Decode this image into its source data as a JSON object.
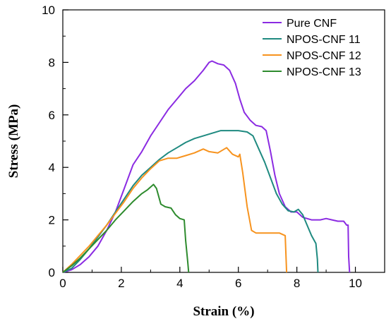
{
  "chart_data": {
    "type": "line",
    "title": "",
    "xlabel": "Strain (%)",
    "ylabel": "Stress (MPa)",
    "xlim": [
      0,
      11
    ],
    "ylim": [
      0,
      10
    ],
    "x_ticks": [
      0,
      2,
      4,
      6,
      8,
      10
    ],
    "y_ticks": [
      0,
      2,
      4,
      6,
      8,
      10
    ],
    "x_tick_labels": [
      "0",
      "2",
      "4",
      "6",
      "8",
      "10"
    ],
    "y_tick_labels": [
      "0",
      "2",
      "4",
      "6",
      "8",
      "10"
    ],
    "grid": false,
    "legend_position": "top-right",
    "series": [
      {
        "name": "Pure CNF",
        "color": "#8b2be2",
        "points": [
          [
            0,
            0
          ],
          [
            0.3,
            0.1
          ],
          [
            0.6,
            0.3
          ],
          [
            0.9,
            0.6
          ],
          [
            1.2,
            1.0
          ],
          [
            1.5,
            1.6
          ],
          [
            1.8,
            2.3
          ],
          [
            2.1,
            3.2
          ],
          [
            2.4,
            4.1
          ],
          [
            2.7,
            4.6
          ],
          [
            3.0,
            5.2
          ],
          [
            3.3,
            5.7
          ],
          [
            3.6,
            6.2
          ],
          [
            3.9,
            6.6
          ],
          [
            4.2,
            7.0
          ],
          [
            4.5,
            7.3
          ],
          [
            4.8,
            7.7
          ],
          [
            5.0,
            8.0
          ],
          [
            5.1,
            8.05
          ],
          [
            5.3,
            7.95
          ],
          [
            5.5,
            7.9
          ],
          [
            5.7,
            7.7
          ],
          [
            5.9,
            7.2
          ],
          [
            6.05,
            6.6
          ],
          [
            6.2,
            6.1
          ],
          [
            6.4,
            5.8
          ],
          [
            6.6,
            5.6
          ],
          [
            6.8,
            5.55
          ],
          [
            6.95,
            5.4
          ],
          [
            7.1,
            4.6
          ],
          [
            7.25,
            3.7
          ],
          [
            7.4,
            3.0
          ],
          [
            7.6,
            2.5
          ],
          [
            7.8,
            2.3
          ],
          [
            8.0,
            2.3
          ],
          [
            8.2,
            2.1
          ],
          [
            8.5,
            2.0
          ],
          [
            8.8,
            2.0
          ],
          [
            9.0,
            2.05
          ],
          [
            9.2,
            2.0
          ],
          [
            9.4,
            1.95
          ],
          [
            9.6,
            1.95
          ],
          [
            9.7,
            1.8
          ],
          [
            9.75,
            1.8
          ],
          [
            9.77,
            0.6
          ],
          [
            9.8,
            0
          ]
        ]
      },
      {
        "name": "NPOS-CNF 11",
        "color": "#1f8a80",
        "points": [
          [
            0,
            0
          ],
          [
            0.3,
            0.15
          ],
          [
            0.6,
            0.5
          ],
          [
            0.9,
            0.9
          ],
          [
            1.2,
            1.35
          ],
          [
            1.5,
            1.8
          ],
          [
            1.8,
            2.3
          ],
          [
            2.1,
            2.8
          ],
          [
            2.4,
            3.3
          ],
          [
            2.7,
            3.7
          ],
          [
            3.0,
            4.0
          ],
          [
            3.3,
            4.3
          ],
          [
            3.6,
            4.55
          ],
          [
            3.9,
            4.75
          ],
          [
            4.2,
            4.95
          ],
          [
            4.5,
            5.1
          ],
          [
            4.8,
            5.2
          ],
          [
            5.1,
            5.3
          ],
          [
            5.4,
            5.4
          ],
          [
            5.7,
            5.4
          ],
          [
            6.0,
            5.4
          ],
          [
            6.3,
            5.35
          ],
          [
            6.5,
            5.2
          ],
          [
            6.7,
            4.7
          ],
          [
            6.9,
            4.2
          ],
          [
            7.1,
            3.6
          ],
          [
            7.3,
            3.0
          ],
          [
            7.5,
            2.6
          ],
          [
            7.7,
            2.35
          ],
          [
            7.9,
            2.3
          ],
          [
            8.05,
            2.4
          ],
          [
            8.2,
            2.2
          ],
          [
            8.35,
            1.8
          ],
          [
            8.5,
            1.4
          ],
          [
            8.65,
            1.1
          ],
          [
            8.7,
            0.5
          ],
          [
            8.72,
            0
          ]
        ]
      },
      {
        "name": "NPOS-CNF 12",
        "color": "#f7931e",
        "points": [
          [
            0,
            0
          ],
          [
            0.3,
            0.3
          ],
          [
            0.6,
            0.65
          ],
          [
            0.9,
            1.0
          ],
          [
            1.2,
            1.4
          ],
          [
            1.5,
            1.8
          ],
          [
            1.8,
            2.25
          ],
          [
            2.1,
            2.7
          ],
          [
            2.4,
            3.2
          ],
          [
            2.7,
            3.6
          ],
          [
            3.0,
            3.95
          ],
          [
            3.3,
            4.25
          ],
          [
            3.6,
            4.35
          ],
          [
            3.9,
            4.35
          ],
          [
            4.2,
            4.45
          ],
          [
            4.5,
            4.55
          ],
          [
            4.8,
            4.7
          ],
          [
            5.0,
            4.6
          ],
          [
            5.3,
            4.55
          ],
          [
            5.6,
            4.75
          ],
          [
            5.8,
            4.5
          ],
          [
            6.0,
            4.4
          ],
          [
            6.05,
            4.5
          ],
          [
            6.15,
            3.8
          ],
          [
            6.3,
            2.5
          ],
          [
            6.45,
            1.6
          ],
          [
            6.6,
            1.5
          ],
          [
            7.0,
            1.5
          ],
          [
            7.4,
            1.5
          ],
          [
            7.6,
            1.4
          ],
          [
            7.65,
            0
          ]
        ]
      },
      {
        "name": "NPOS-CNF 13",
        "color": "#2e8b2e",
        "points": [
          [
            0,
            0
          ],
          [
            0.3,
            0.25
          ],
          [
            0.6,
            0.55
          ],
          [
            0.9,
            0.9
          ],
          [
            1.2,
            1.25
          ],
          [
            1.5,
            1.6
          ],
          [
            1.8,
            2.0
          ],
          [
            2.1,
            2.35
          ],
          [
            2.4,
            2.7
          ],
          [
            2.7,
            3.0
          ],
          [
            2.9,
            3.15
          ],
          [
            3.1,
            3.35
          ],
          [
            3.2,
            3.2
          ],
          [
            3.35,
            2.6
          ],
          [
            3.5,
            2.5
          ],
          [
            3.7,
            2.45
          ],
          [
            3.85,
            2.2
          ],
          [
            4.0,
            2.05
          ],
          [
            4.15,
            2.0
          ],
          [
            4.2,
            1.2
          ],
          [
            4.27,
            0.4
          ],
          [
            4.3,
            0
          ]
        ]
      }
    ]
  }
}
